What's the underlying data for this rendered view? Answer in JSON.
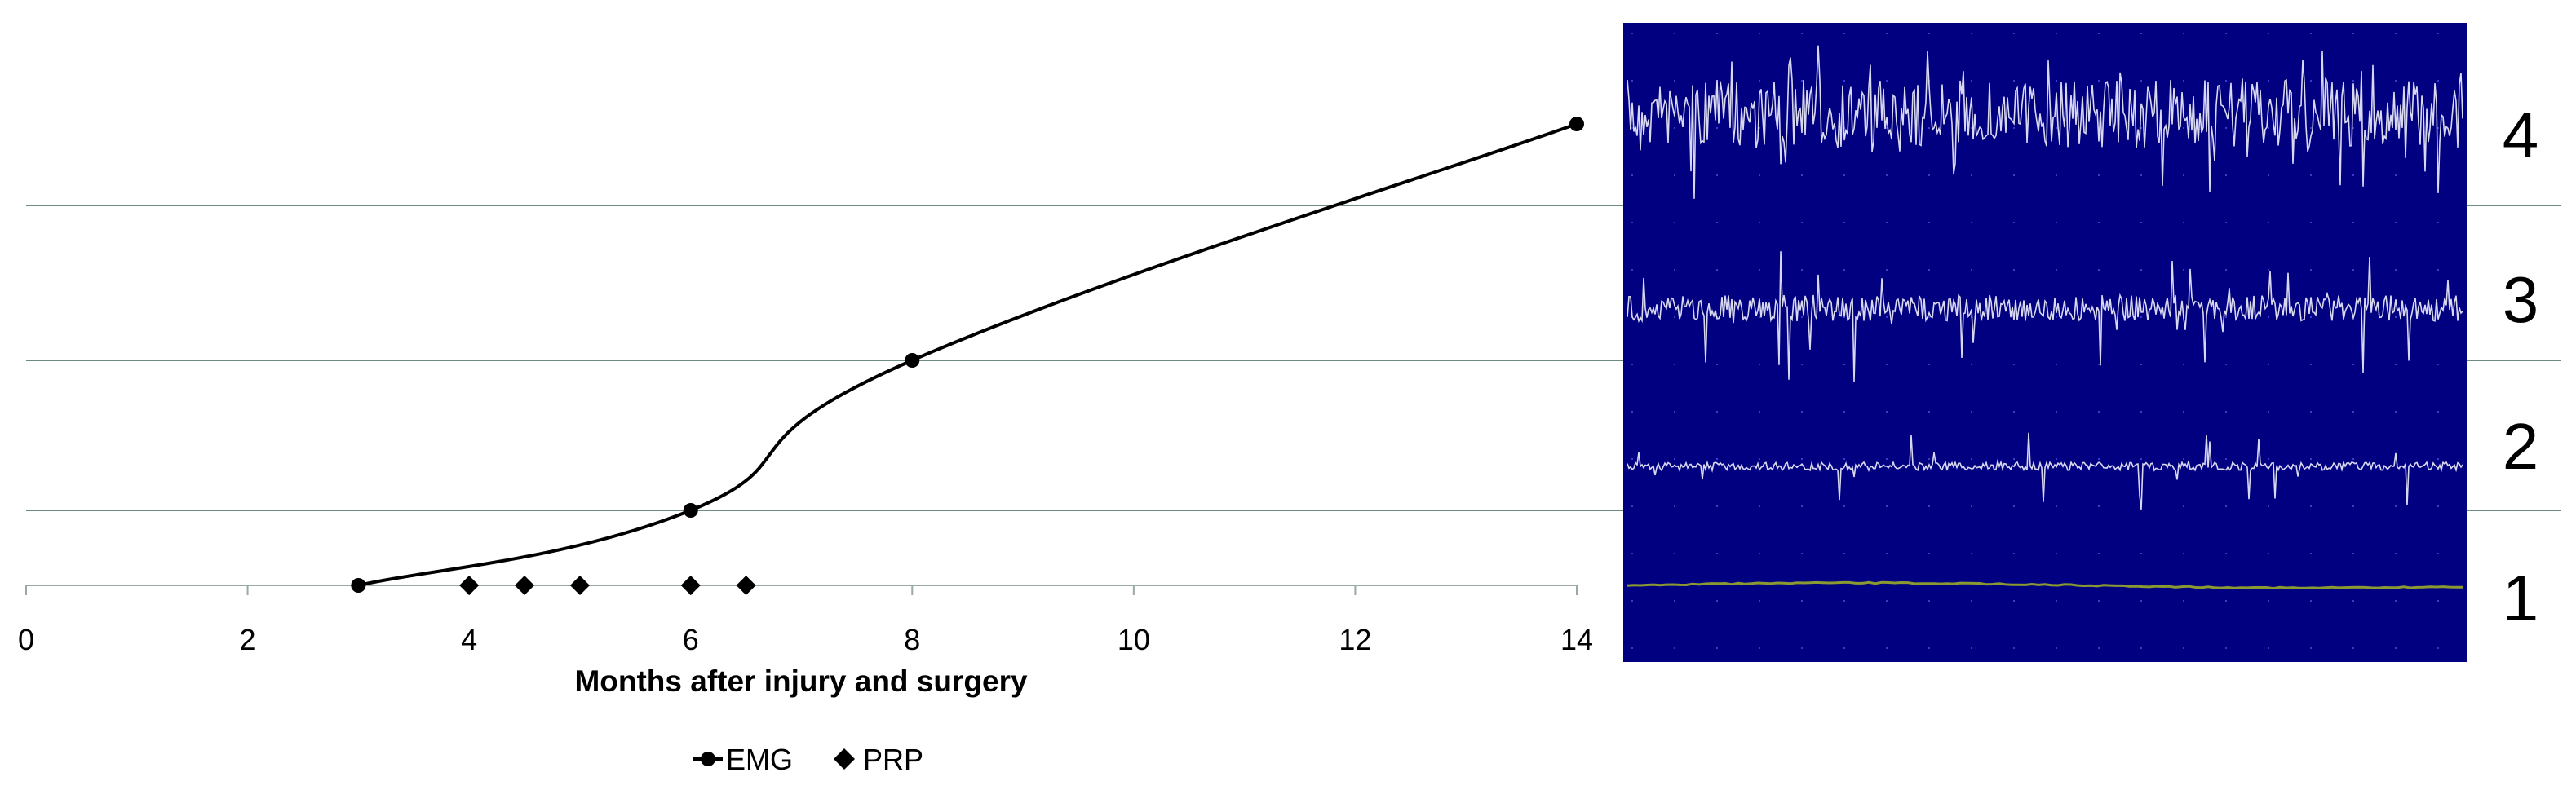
{
  "chart_data": {
    "type": "line",
    "xlabel": "Months after injury and surgery",
    "xlim": [
      0,
      14
    ],
    "x_ticks": [
      0,
      2,
      4,
      6,
      8,
      10,
      12,
      14
    ],
    "ylim": [
      1,
      4
    ],
    "y_levels": [
      1,
      2,
      3,
      4
    ],
    "grid": "horizontal",
    "legend_position": "bottom",
    "series": [
      {
        "name": "EMG",
        "marker": "circle",
        "color": "#000000",
        "points": [
          {
            "x": 3,
            "y": 1
          },
          {
            "x": 6,
            "y": 2
          },
          {
            "x": 8,
            "y": 3
          },
          {
            "x": 14,
            "y": 4
          }
        ]
      },
      {
        "name": "PRP",
        "marker": "diamond",
        "color": "#000000",
        "points": [
          {
            "x": 4,
            "y": 1
          },
          {
            "x": 4.5,
            "y": 1
          },
          {
            "x": 5,
            "y": 1
          },
          {
            "x": 6,
            "y": 1
          },
          {
            "x": 6.5,
            "y": 1
          }
        ]
      }
    ],
    "level_labels": [
      "1",
      "2",
      "3",
      "4"
    ],
    "emg_panel": {
      "background_color": "#000080",
      "trace_color": "#d8d8f0",
      "flat_trace_color": "#8a9a30"
    },
    "gridline_color": "#6e8a84"
  }
}
